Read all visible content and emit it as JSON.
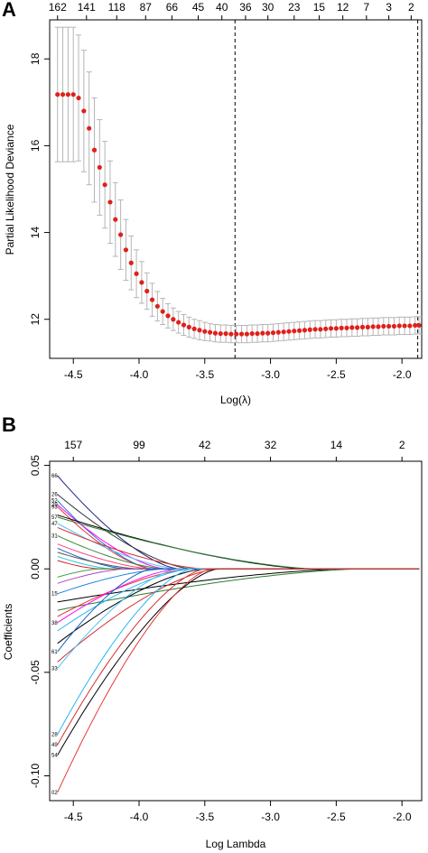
{
  "chart_data": [
    {
      "panel_label": "A",
      "type": "scatter",
      "title": "",
      "xlabel": "Log(λ)",
      "ylabel": "Partial Likelihood Deviance",
      "xlim": [
        -4.68,
        -1.85
      ],
      "ylim": [
        11.1,
        18.9
      ],
      "x_ticks": [
        -4.5,
        -4.0,
        -3.5,
        -3.0,
        -2.5,
        -2.0
      ],
      "x_tick_labels": [
        "-4.5",
        "-4.0",
        "-3.5",
        "-3.0",
        "-2.5",
        "-2.0"
      ],
      "y_ticks": [
        12,
        14,
        16,
        18
      ],
      "y_tick_labels": [
        "12",
        "14",
        "16",
        "18"
      ],
      "top_axis_labels": [
        "162",
        "141",
        "118",
        "87",
        "66",
        "45",
        "40",
        "36",
        "30",
        "23",
        "15",
        "12",
        "7",
        "3",
        "2"
      ],
      "top_axis_positions": [
        -4.62,
        -4.4,
        -4.17,
        -3.95,
        -3.75,
        -3.55,
        -3.37,
        -3.19,
        -3.02,
        -2.82,
        -2.63,
        -2.45,
        -2.27,
        -2.1,
        -1.93
      ],
      "vlines": [
        -3.27,
        -1.88
      ],
      "point_color": "#e0201b",
      "errorbar_color": "#b5b5b5",
      "x": [
        -4.62,
        -4.58,
        -4.54,
        -4.5,
        -4.46,
        -4.42,
        -4.38,
        -4.34,
        -4.3,
        -4.26,
        -4.22,
        -4.18,
        -4.14,
        -4.1,
        -4.06,
        -4.02,
        -3.98,
        -3.94,
        -3.9,
        -3.86,
        -3.82,
        -3.78,
        -3.74,
        -3.7,
        -3.66,
        -3.62,
        -3.58,
        -3.54,
        -3.5,
        -3.46,
        -3.42,
        -3.38,
        -3.34,
        -3.3,
        -3.26,
        -3.22,
        -3.18,
        -3.14,
        -3.1,
        -3.06,
        -3.02,
        -2.98,
        -2.94,
        -2.9,
        -2.86,
        -2.82,
        -2.78,
        -2.74,
        -2.7,
        -2.66,
        -2.62,
        -2.58,
        -2.54,
        -2.5,
        -2.46,
        -2.42,
        -2.38,
        -2.34,
        -2.3,
        -2.26,
        -2.22,
        -2.18,
        -2.14,
        -2.1,
        -2.06,
        -2.02,
        -1.98,
        -1.94,
        -1.9,
        -1.87
      ],
      "y": [
        17.18,
        17.18,
        17.18,
        17.18,
        17.1,
        16.8,
        16.4,
        15.9,
        15.5,
        15.1,
        14.7,
        14.3,
        13.95,
        13.6,
        13.3,
        13.05,
        12.85,
        12.65,
        12.45,
        12.3,
        12.18,
        12.08,
        12.0,
        11.93,
        11.87,
        11.82,
        11.78,
        11.75,
        11.72,
        11.7,
        11.68,
        11.67,
        11.67,
        11.66,
        11.66,
        11.66,
        11.66,
        11.67,
        11.67,
        11.68,
        11.68,
        11.69,
        11.7,
        11.71,
        11.72,
        11.73,
        11.74,
        11.75,
        11.76,
        11.77,
        11.77,
        11.78,
        11.79,
        11.79,
        11.8,
        11.8,
        11.81,
        11.81,
        11.82,
        11.82,
        11.83,
        11.83,
        11.84,
        11.84,
        11.84,
        11.85,
        11.85,
        11.85,
        11.86,
        11.86
      ],
      "err": [
        1.55,
        1.55,
        1.55,
        1.55,
        1.45,
        1.4,
        1.3,
        1.2,
        1.1,
        1.0,
        0.95,
        0.85,
        0.8,
        0.7,
        0.62,
        0.55,
        0.48,
        0.42,
        0.38,
        0.34,
        0.3,
        0.28,
        0.26,
        0.25,
        0.24,
        0.23,
        0.22,
        0.22,
        0.21,
        0.2,
        0.2,
        0.2,
        0.2,
        0.2,
        0.2,
        0.2,
        0.2,
        0.2,
        0.2,
        0.2,
        0.2,
        0.2,
        0.2,
        0.2,
        0.2,
        0.2,
        0.2,
        0.2,
        0.2,
        0.2,
        0.2,
        0.2,
        0.2,
        0.2,
        0.2,
        0.2,
        0.2,
        0.2,
        0.2,
        0.2,
        0.2,
        0.2,
        0.2,
        0.2,
        0.2,
        0.2,
        0.2,
        0.2,
        0.2,
        0.2
      ]
    },
    {
      "panel_label": "B",
      "type": "line",
      "title": "",
      "xlabel": "Log Lambda",
      "ylabel": "Coefficients",
      "xlim": [
        -4.68,
        -1.85
      ],
      "ylim": [
        -0.112,
        0.052
      ],
      "x_ticks": [
        -4.5,
        -4.0,
        -3.5,
        -3.0,
        -2.5,
        -2.0
      ],
      "x_tick_labels": [
        "-4.5",
        "-4.0",
        "-3.5",
        "-3.0",
        "-2.5",
        "-2.0"
      ],
      "y_ticks": [
        -0.1,
        -0.05,
        0.0,
        0.05
      ],
      "y_tick_labels": [
        "-0.10",
        "-0.05",
        "0.00",
        "0.05"
      ],
      "top_axis_labels": [
        "157",
        "99",
        "42",
        "32",
        "14",
        "2"
      ],
      "top_axis_positions": [
        -4.5,
        -4.0,
        -3.5,
        -3.0,
        -2.5,
        -2.0
      ],
      "left_labels": [
        "66",
        "26",
        "52",
        "29",
        "93",
        "57",
        "47",
        "31",
        "15",
        "38",
        "61",
        "33",
        "28",
        "49",
        "54",
        "02"
      ],
      "x_start": -4.62,
      "series": [
        {
          "color": "#1a237e",
          "start": 0.045,
          "zero_at": -3.7
        },
        {
          "color": "#333333",
          "start": 0.036,
          "zero_at": -3.6
        },
        {
          "color": "#1976d2",
          "start": 0.033,
          "zero_at": -3.9
        },
        {
          "color": "#ff00ff",
          "start": 0.031,
          "zero_at": -3.8
        },
        {
          "color": "#e53935",
          "start": 0.03,
          "zero_at": -3.9
        },
        {
          "color": "#000000",
          "start": 0.026,
          "zero_at": -2.7
        },
        {
          "color": "#2e7d32",
          "start": 0.025,
          "zero_at": -2.65
        },
        {
          "color": "#4fc3f7",
          "start": 0.022,
          "zero_at": -3.7
        },
        {
          "color": "#d32f2f",
          "start": 0.02,
          "zero_at": -3.5
        },
        {
          "color": "#388e3c",
          "start": 0.016,
          "zero_at": -3.8
        },
        {
          "color": "#ff4081",
          "start": 0.012,
          "zero_at": -3.9
        },
        {
          "color": "#1565c0",
          "start": 0.01,
          "zero_at": -4.1
        },
        {
          "color": "#555555",
          "start": 0.008,
          "zero_at": -4.0
        },
        {
          "color": "#26c6da",
          "start": 0.006,
          "zero_at": -4.2
        },
        {
          "color": "#c62828",
          "start": 0.004,
          "zero_at": -4.3
        },
        {
          "color": "#43a047",
          "start": -0.004,
          "zero_at": -4.3
        },
        {
          "color": "#ab47bc",
          "start": -0.007,
          "zero_at": -4.1
        },
        {
          "color": "#1e88e5",
          "start": -0.012,
          "zero_at": -3.8
        },
        {
          "color": "#000000",
          "start": -0.016,
          "zero_at": -2.4
        },
        {
          "color": "#2e7d32",
          "start": -0.02,
          "zero_at": -2.3
        },
        {
          "color": "#e53935",
          "start": -0.023,
          "zero_at": -3.6
        },
        {
          "color": "#ff00ff",
          "start": -0.026,
          "zero_at": -3.7
        },
        {
          "color": "#29b6f6",
          "start": -0.03,
          "zero_at": -3.6
        },
        {
          "color": "#000000",
          "start": -0.036,
          "zero_at": -3.5
        },
        {
          "color": "#1565c0",
          "start": -0.04,
          "zero_at": -3.9
        },
        {
          "color": "#d32f2f",
          "start": -0.045,
          "zero_at": -3.4
        },
        {
          "color": "#4fc3f7",
          "start": -0.048,
          "zero_at": -3.7
        },
        {
          "color": "#29b6f6",
          "start": -0.08,
          "zero_at": -3.6
        },
        {
          "color": "#d32f2f",
          "start": -0.085,
          "zero_at": -3.5
        },
        {
          "color": "#000000",
          "start": -0.09,
          "zero_at": -3.4
        },
        {
          "color": "#e53935",
          "start": -0.108,
          "zero_at": -3.45
        }
      ]
    }
  ]
}
